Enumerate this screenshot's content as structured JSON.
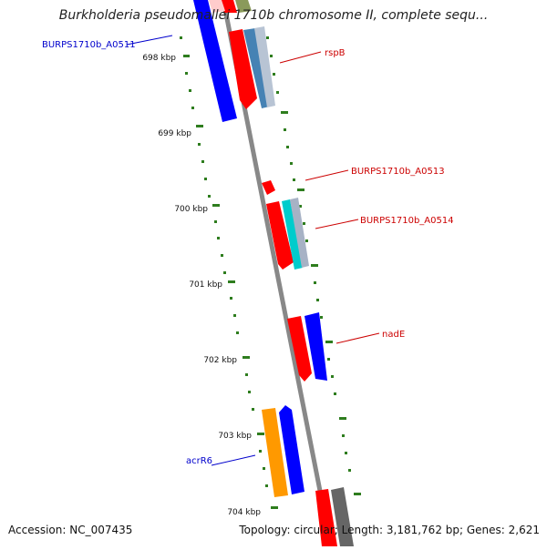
{
  "title": "Burkholderia pseudomallei 1710b chromosome II, complete sequ...",
  "footer": {
    "accession": "Accession: NC_007435",
    "summary": "Topology: circular; Length: 3,181,762 bp; Genes: 2,621"
  },
  "colors": {
    "forward_gene": "#ff0000",
    "reverse_gene": "#0000ff",
    "orange_gene": "#ff9900",
    "gray_gene": "#666666",
    "cds_blue": "#4682b4",
    "cds_cyan": "#00cccc",
    "tick": "#2e7d1e",
    "label_red": "#cc0000",
    "label_blue": "#0000cc",
    "backbone": "#888888"
  },
  "ruler": {
    "unit": "kbp",
    "ticks": [
      {
        "value": 698,
        "label": "698 kbp"
      },
      {
        "value": 699,
        "label": "699 kbp"
      },
      {
        "value": 700,
        "label": "700 kbp"
      },
      {
        "value": 701,
        "label": "701 kbp"
      },
      {
        "value": 702,
        "label": "702 kbp"
      },
      {
        "value": 703,
        "label": "703 kbp"
      },
      {
        "value": 704,
        "label": "704 kbp"
      }
    ]
  },
  "gene_labels": [
    {
      "name": "BURPS1710b_A0511",
      "color": "#0000cc",
      "side": "left"
    },
    {
      "name": "rspB",
      "color": "#cc0000",
      "side": "right"
    },
    {
      "name": "BURPS1710b_A0513",
      "color": "#cc0000",
      "side": "right"
    },
    {
      "name": "BURPS1710b_A0514",
      "color": "#cc0000",
      "side": "right"
    },
    {
      "name": "nadE",
      "color": "#cc0000",
      "side": "right"
    },
    {
      "name": "acrR6",
      "color": "#0000cc",
      "side": "left"
    }
  ]
}
